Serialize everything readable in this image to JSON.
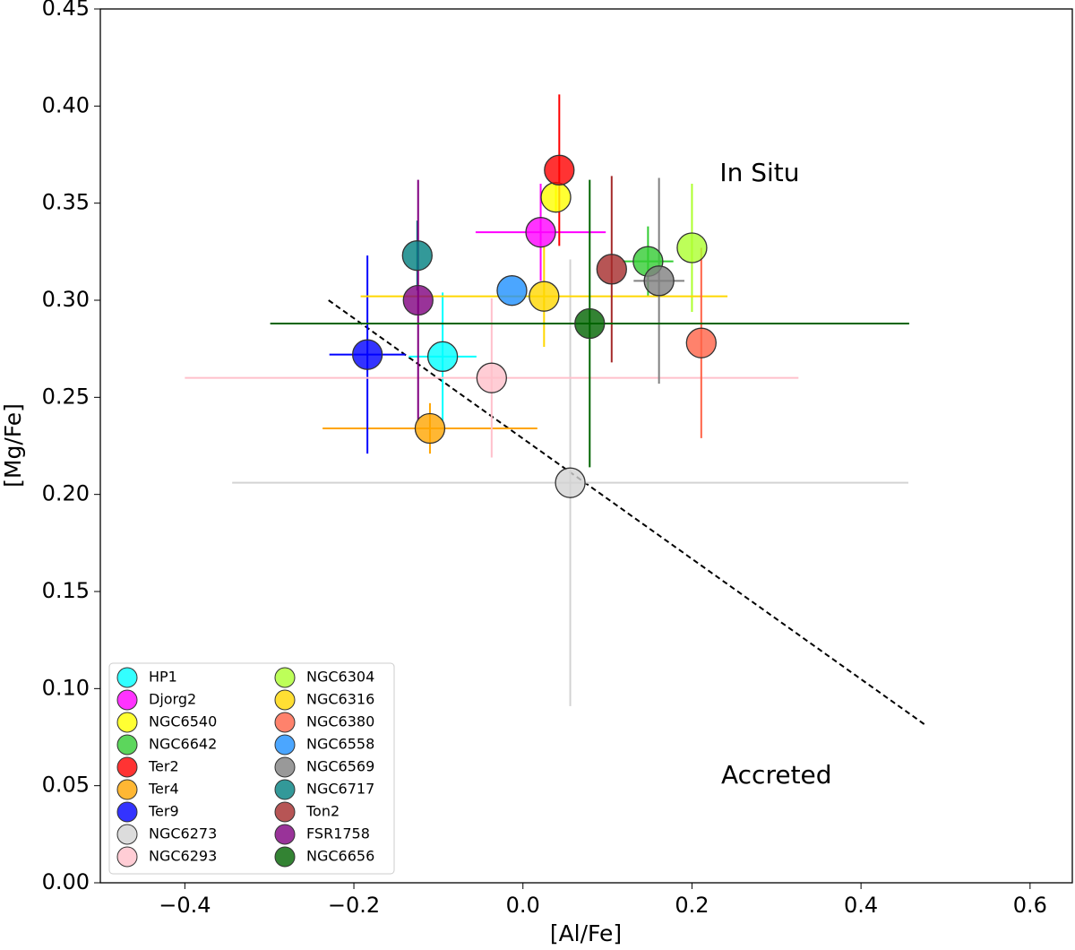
{
  "chart_data": {
    "type": "scatter",
    "xlabel": "[Al/Fe]",
    "ylabel": "[Mg/Fe]",
    "xlim": [
      -0.5,
      0.65
    ],
    "ylim": [
      0,
      0.45
    ],
    "xticks": [
      {
        "value": -0.4,
        "label": "−0.4"
      },
      {
        "value": -0.2,
        "label": "−0.2"
      },
      {
        "value": 0,
        "label": "0.0"
      },
      0.2,
      0.4,
      0.6
    ],
    "yticks": [
      {
        "value": 0,
        "label": "0.00"
      },
      0.05,
      {
        "value": 0.1,
        "label": "0.10"
      },
      0.15,
      {
        "value": 0.2,
        "label": "0.20"
      },
      0.25,
      {
        "value": 0.3,
        "label": "0.30"
      },
      0.35,
      {
        "value": 0.4,
        "label": "0.40"
      },
      0.45
    ],
    "legend": "lower left",
    "series": [
      {
        "name": "HP1",
        "color": "#00ffff",
        "x": [
          -0.095
        ],
        "values": [
          0.271
        ],
        "xerr": [
          0.04
        ],
        "yerr": [
          0.033
        ]
      },
      {
        "name": "Djorg2",
        "color": "#ff00ff",
        "x": [
          0.021
        ],
        "values": [
          0.335
        ],
        "xerr": [
          0.077
        ],
        "yerr": [
          0.025
        ]
      },
      {
        "name": "NGC6540",
        "color": "#ffff00",
        "x": [
          0.039
        ],
        "values": [
          0.353
        ],
        "xerr": [
          null
        ],
        "yerr": [
          0.008
        ]
      },
      {
        "name": "NGC6642",
        "color": "#33cc33",
        "x": [
          0.148
        ],
        "values": [
          0.32
        ],
        "xerr": [
          0.03
        ],
        "yerr": [
          0.018
        ]
      },
      {
        "name": "Ter2",
        "color": "#ff0000",
        "x": [
          0.043
        ],
        "values": [
          0.367
        ],
        "xerr": [
          null
        ],
        "yerr": [
          0.039
        ]
      },
      {
        "name": "Ter4",
        "color": "#ffa500",
        "x": [
          -0.11
        ],
        "values": [
          0.234
        ],
        "xerr": [
          0.127
        ],
        "yerr": [
          0.013
        ]
      },
      {
        "name": "Ter9",
        "color": "#0000ff",
        "x": [
          -0.184
        ],
        "values": [
          0.272
        ],
        "xerr": [
          0.045
        ],
        "yerr": [
          0.051
        ]
      },
      {
        "name": "NGC6273",
        "color": "#d3d3d3",
        "x": [
          0.056
        ],
        "values": [
          0.206
        ],
        "xerr": [
          0.4
        ],
        "yerr": [
          0.115
        ]
      },
      {
        "name": "NGC6293",
        "color": "#ffc0cb",
        "x": [
          -0.037
        ],
        "values": [
          0.26
        ],
        "xerr": [
          0.363
        ],
        "yerr": [
          0.041
        ]
      },
      {
        "name": "NGC6304",
        "color": "#adff2f",
        "x": [
          0.2
        ],
        "values": [
          0.327
        ],
        "xerr": [
          null
        ],
        "yerr": [
          0.033
        ]
      },
      {
        "name": "NGC6316",
        "color": "#ffd700",
        "x": [
          0.025
        ],
        "values": [
          0.302
        ],
        "xerr": [
          0.217
        ],
        "yerr": [
          0.026
        ]
      },
      {
        "name": "NGC6380",
        "color": "#ff6347",
        "x": [
          0.211
        ],
        "values": [
          0.278
        ],
        "xerr": [
          null
        ],
        "yerr": [
          0.049
        ]
      },
      {
        "name": "NGC6558",
        "color": "#1e90ff",
        "x": [
          -0.013
        ],
        "values": [
          0.305
        ],
        "xerr": [
          null
        ],
        "yerr": [
          null
        ]
      },
      {
        "name": "NGC6569",
        "color": "#808080",
        "x": [
          0.161
        ],
        "values": [
          0.31
        ],
        "xerr": [
          0.03
        ],
        "yerr": [
          0.053
        ]
      },
      {
        "name": "NGC6717",
        "color": "#008080",
        "x": [
          -0.125
        ],
        "values": [
          0.323
        ],
        "xerr": [
          null
        ],
        "yerr": [
          0.018
        ]
      },
      {
        "name": "Ton2",
        "color": "#a52a2a",
        "x": [
          0.105
        ],
        "values": [
          0.316
        ],
        "xerr": [
          null
        ],
        "yerr": [
          0.048
        ]
      },
      {
        "name": "FSR1758",
        "color": "#800080",
        "x": [
          -0.124
        ],
        "values": [
          0.3
        ],
        "xerr": [
          null
        ],
        "yerr": [
          0.062
        ]
      },
      {
        "name": "NGC6656",
        "color": "#006400",
        "x": [
          0.079
        ],
        "values": [
          0.288
        ],
        "xerr": [
          0.378
        ],
        "yerr": [
          0.074
        ]
      }
    ],
    "divider": {
      "x": [
        -0.23,
        0.477
      ],
      "values": [
        0.3,
        0.081
      ]
    },
    "annotations": [
      {
        "text": "In Situ",
        "x": 0.28,
        "y": 0.365
      },
      {
        "text": "Accreted",
        "x": 0.3,
        "y": 0.055
      }
    ]
  }
}
